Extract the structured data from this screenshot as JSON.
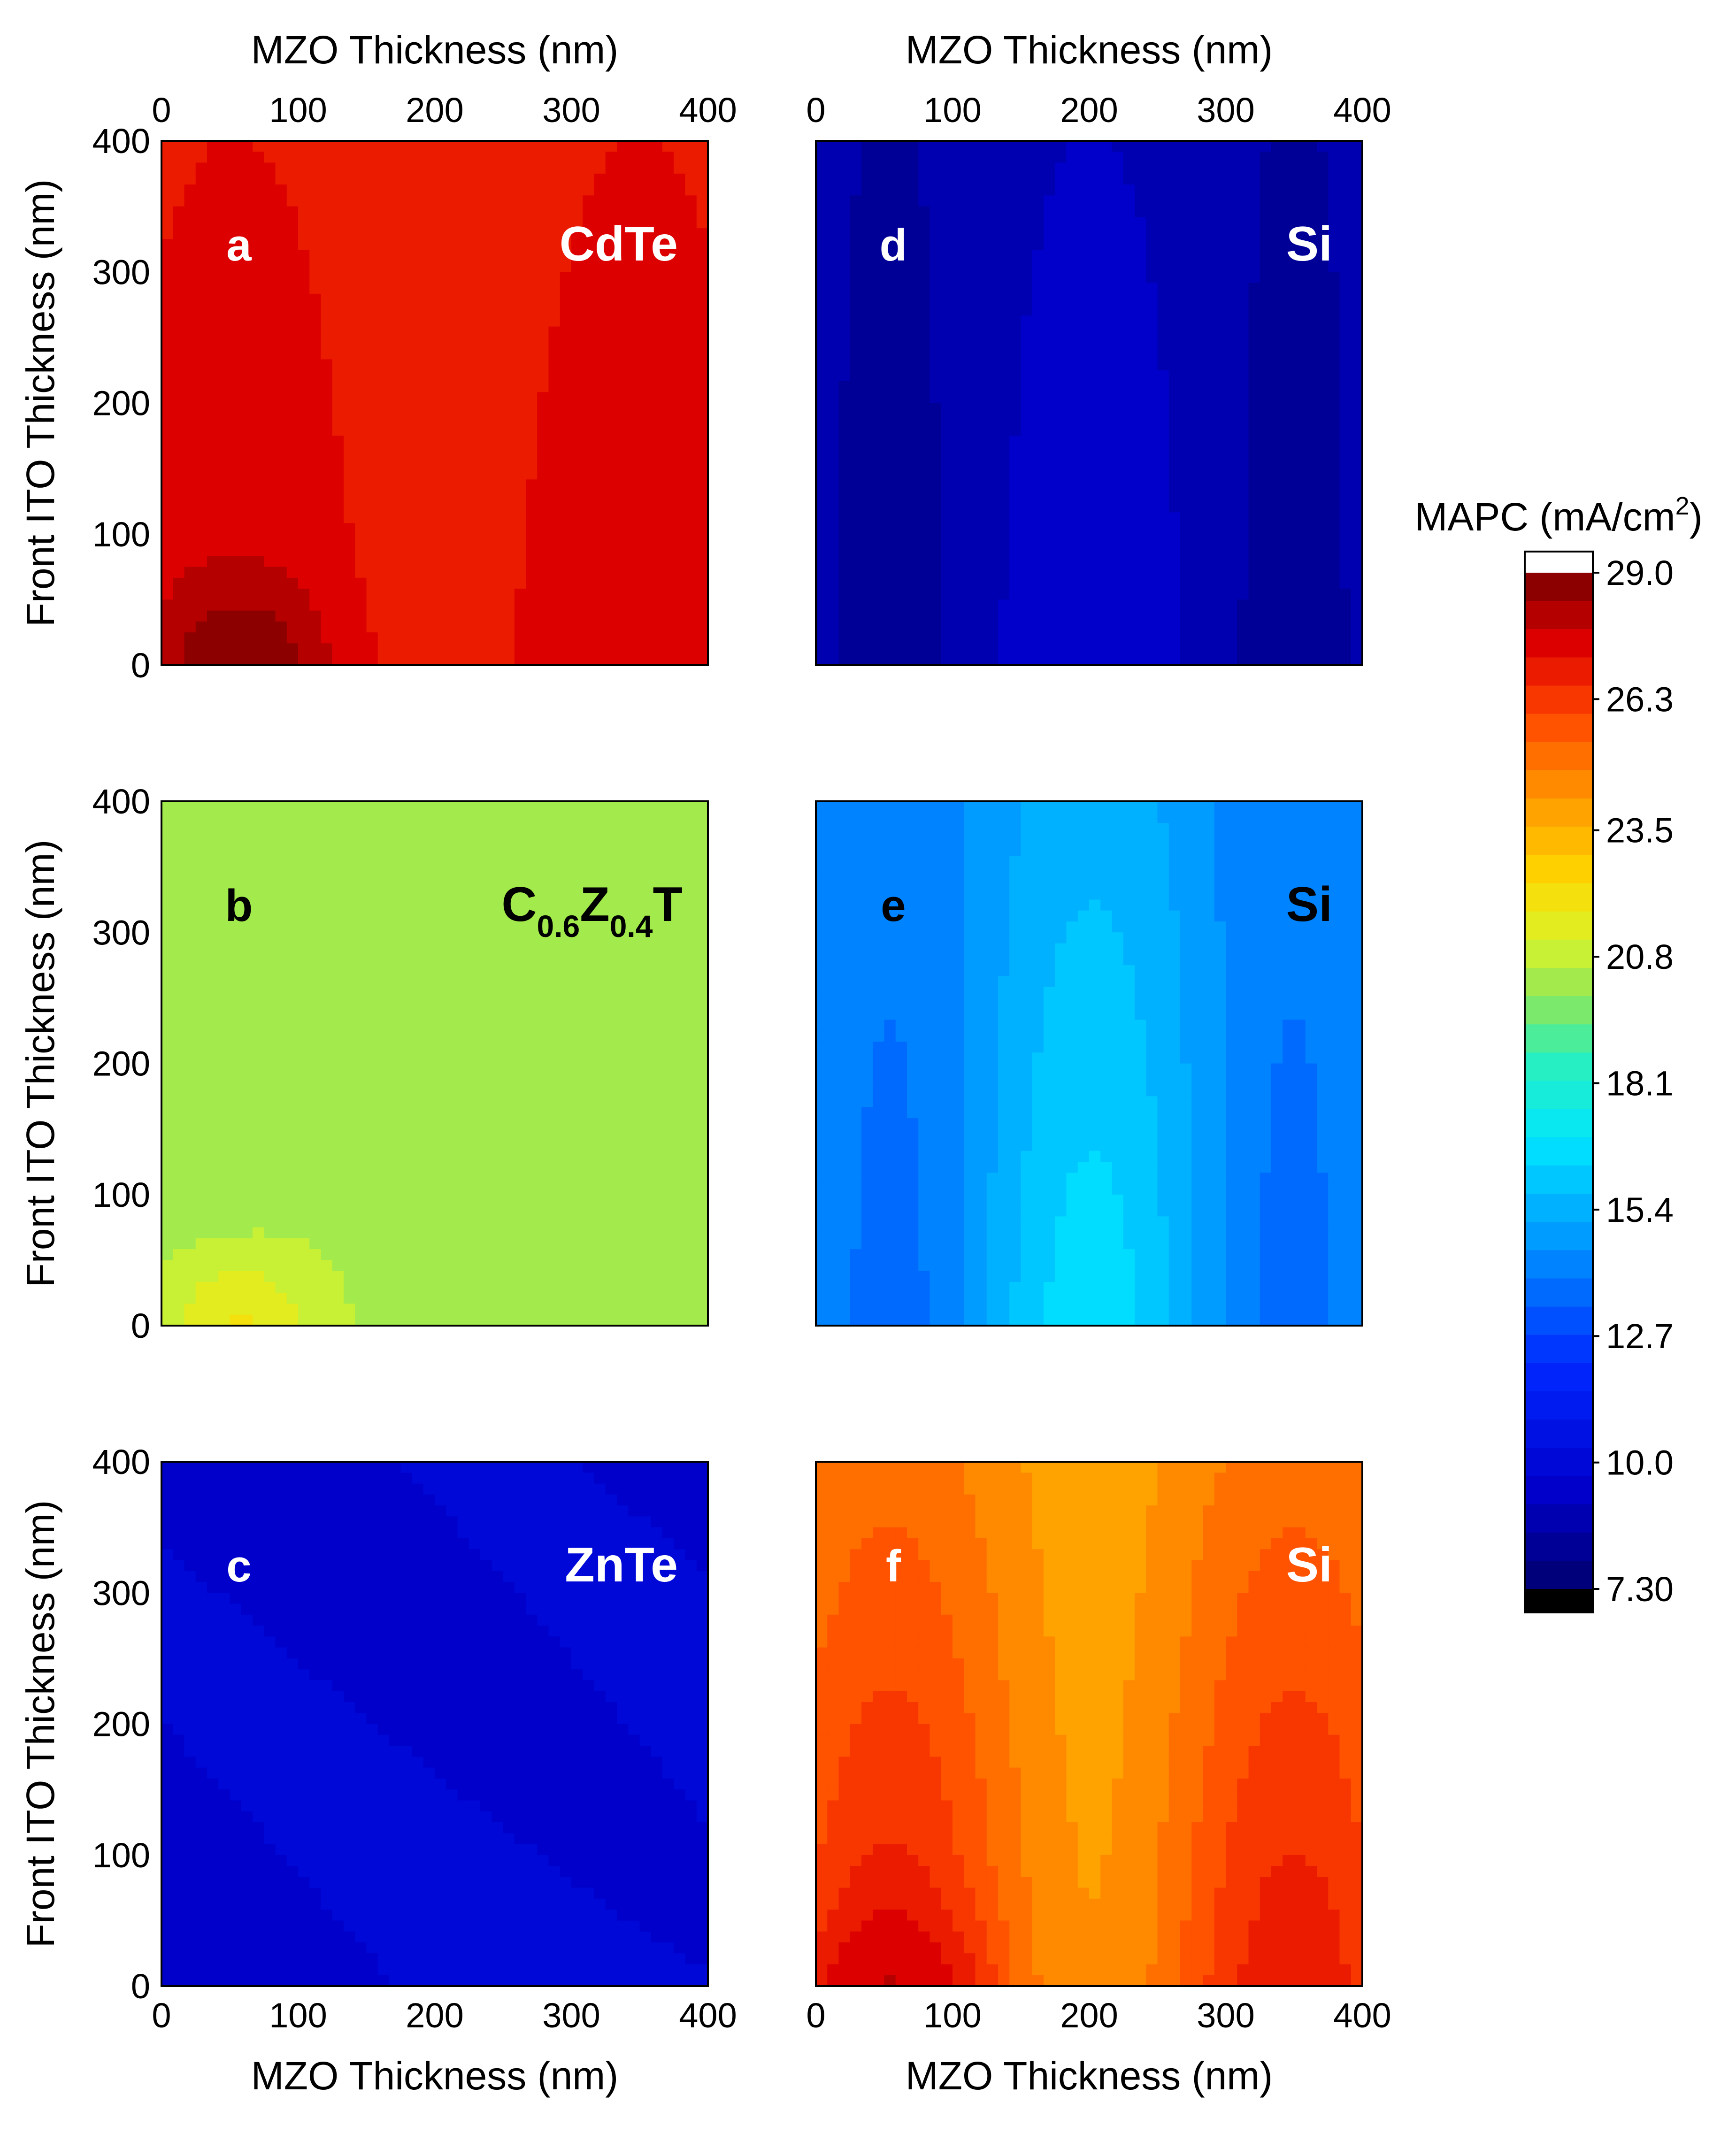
{
  "chart_data": {
    "type": "heatmap",
    "subtype": "filled-contour",
    "x_axis": {
      "label": "MZO Thickness (nm)",
      "range": [
        0,
        400
      ],
      "ticks": [
        0,
        100,
        200,
        300,
        400
      ]
    },
    "y_axis": {
      "label": "Front ITO Thickness (nm)",
      "range": [
        0,
        400
      ],
      "ticks": [
        0,
        100,
        200,
        300,
        400
      ]
    },
    "colorbar": {
      "title": "MAPC (mA/cm",
      "title_sup": "2",
      "title_end": ")",
      "range": [
        7.3,
        29.0
      ],
      "tick_labels": [
        "29.0",
        "26.3",
        "23.5",
        "20.8",
        "18.1",
        "15.4",
        "12.7",
        "10.0",
        "7.30"
      ],
      "tick_values": [
        29.0,
        26.3,
        23.5,
        20.8,
        18.1,
        15.4,
        12.7,
        10.0,
        7.3
      ],
      "levels": 36,
      "over_color": "#ffffff",
      "under_color": "#000000"
    },
    "panels": [
      {
        "id": "a",
        "letter": "a",
        "material": "CdTe",
        "text_color": "#ffffff",
        "base": 27.0,
        "range": 0.8,
        "pattern": "wave",
        "inverted": false,
        "corner_peak": 29.0
      },
      {
        "id": "d",
        "letter": "d",
        "material": "Si",
        "text_color": "#ffffff",
        "base": 8.8,
        "range": 1.3,
        "pattern": "wave",
        "inverted": true,
        "corner_peak": null
      },
      {
        "id": "b",
        "letter": "b",
        "material": "C",
        "material_sub1": "0.6",
        "material_mid": "Z",
        "material_sub2": "0.4",
        "material_end": "T",
        "text_color": "#000000",
        "base": 20.3,
        "range": 0.5,
        "pattern": "flat",
        "inverted": true,
        "corner_peak": 21.8
      },
      {
        "id": "e",
        "letter": "e",
        "material": "Si",
        "text_color": "#000000",
        "base": 14.8,
        "range": 2.8,
        "pattern": "wave",
        "inverted": true,
        "corner_peak": null
      },
      {
        "id": "c",
        "letter": "c",
        "material": "ZnTe",
        "text_color": "#ffffff",
        "base": 9.6,
        "range": 0.5,
        "pattern": "diagonal",
        "inverted": true,
        "corner_peak": null
      },
      {
        "id": "f",
        "letter": "f",
        "material": "Si",
        "text_color": "#ffffff",
        "base": 24.5,
        "range": 2.6,
        "pattern": "wave",
        "inverted": false,
        "corner_peak": 27.8
      }
    ]
  }
}
